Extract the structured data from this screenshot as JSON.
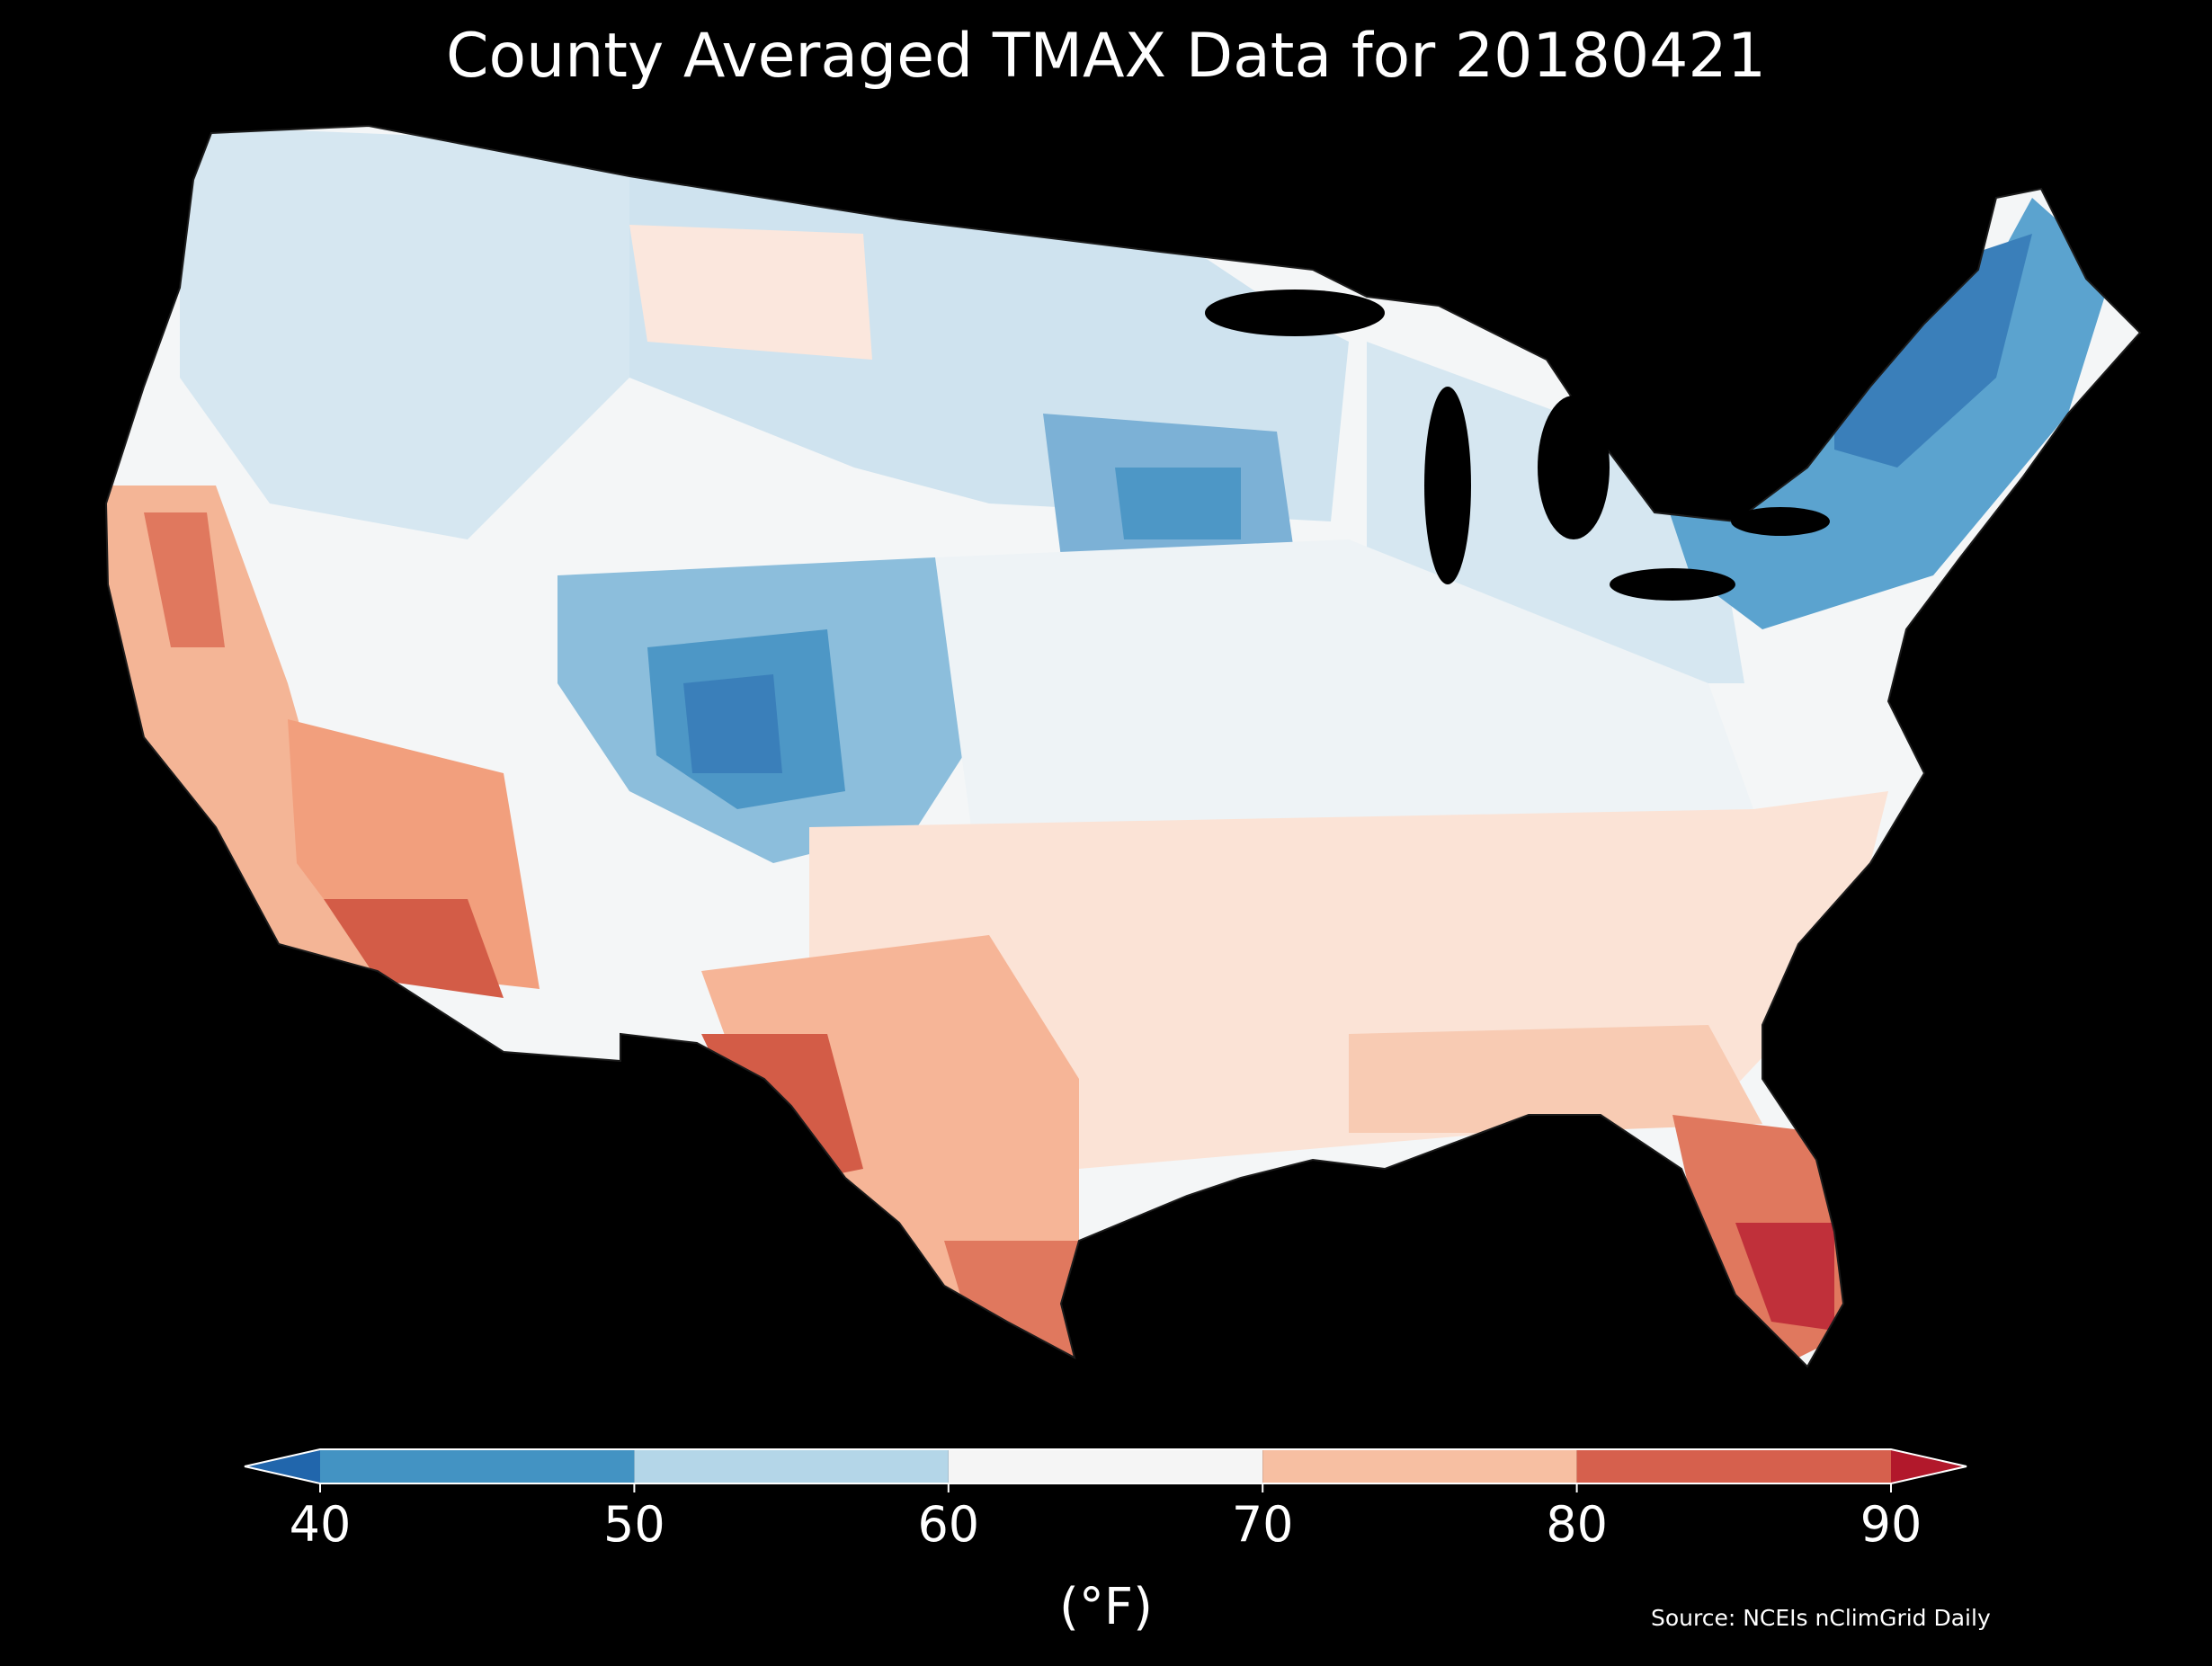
{
  "title": "County Averaged TMAX Data for 20180421",
  "source": "Source: NCEIs nClimGrid Daily",
  "colorbar": {
    "label": "(°F)",
    "ticks": [
      "40",
      "50",
      "60",
      "70",
      "80",
      "90"
    ],
    "bins": [
      {
        "range": "<40",
        "color": "#2166ac"
      },
      {
        "range": "40-50",
        "color": "#4393c3"
      },
      {
        "range": "50-60",
        "color": "#b4d6e8"
      },
      {
        "range": "60-70",
        "color": "#f5f5f5"
      },
      {
        "range": "70-80",
        "color": "#f7bfa2"
      },
      {
        "range": "80-90",
        "color": "#d6604d"
      },
      {
        "range": ">90",
        "color": "#b2182b"
      }
    ],
    "extend": "both"
  },
  "map": {
    "region": "Contiguous United States",
    "unit": "county",
    "variable": "TMAX",
    "background": "#000000",
    "county_border_color": "#222222"
  }
}
